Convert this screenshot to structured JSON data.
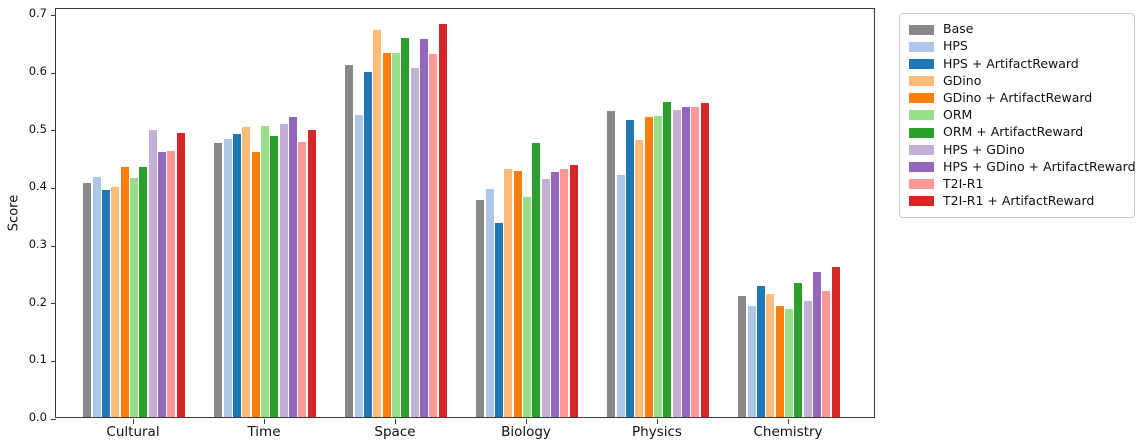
{
  "chart_data": {
    "type": "bar",
    "title": "",
    "xlabel": "",
    "ylabel": "Score",
    "ylim": [
      0.0,
      0.711
    ],
    "yticks": [
      0.0,
      0.1,
      0.2,
      0.3,
      0.4,
      0.5,
      0.6,
      0.7
    ],
    "grid": false,
    "legend_position": "outside upper right",
    "categories": [
      "Cultural",
      "Time",
      "Space",
      "Biology",
      "Physics",
      "Chemistry"
    ],
    "series": [
      {
        "name": "Base",
        "color": "#888888",
        "values": [
          0.406,
          0.475,
          0.611,
          0.377,
          0.53,
          0.21
        ]
      },
      {
        "name": "HPS",
        "color": "#aec7e8",
        "values": [
          0.416,
          0.482,
          0.523,
          0.396,
          0.42,
          0.192
        ]
      },
      {
        "name": "HPS + ArtifactReward",
        "color": "#1f77b4",
        "values": [
          0.394,
          0.491,
          0.599,
          0.336,
          0.515,
          0.227
        ]
      },
      {
        "name": "GDino",
        "color": "#ffbb78",
        "values": [
          0.399,
          0.503,
          0.672,
          0.43,
          0.481,
          0.214
        ]
      },
      {
        "name": "GDino + ArtifactReward",
        "color": "#ff7f0e",
        "values": [
          0.433,
          0.459,
          0.632,
          0.427,
          0.521,
          0.193
        ]
      },
      {
        "name": "ORM",
        "color": "#98df8a",
        "values": [
          0.415,
          0.504,
          0.632,
          0.382,
          0.522,
          0.188
        ]
      },
      {
        "name": "ORM + ArtifactReward",
        "color": "#2ca02c",
        "values": [
          0.433,
          0.487,
          0.657,
          0.476,
          0.546,
          0.232
        ]
      },
      {
        "name": "HPS + GDino",
        "color": "#c5b0d5",
        "values": [
          0.498,
          0.509,
          0.606,
          0.412,
          0.533,
          0.202
        ]
      },
      {
        "name": "HPS + GDino + ArtifactReward",
        "color": "#9467bd",
        "values": [
          0.459,
          0.521,
          0.655,
          0.425,
          0.537,
          0.251
        ]
      },
      {
        "name": "T2I-R1",
        "color": "#ff9896",
        "values": [
          0.462,
          0.477,
          0.629,
          0.431,
          0.537,
          0.218
        ]
      },
      {
        "name": "T2I-R1 + ArtifactReward",
        "color": "#d62728",
        "values": [
          0.492,
          0.498,
          0.681,
          0.437,
          0.545,
          0.261
        ]
      }
    ]
  }
}
